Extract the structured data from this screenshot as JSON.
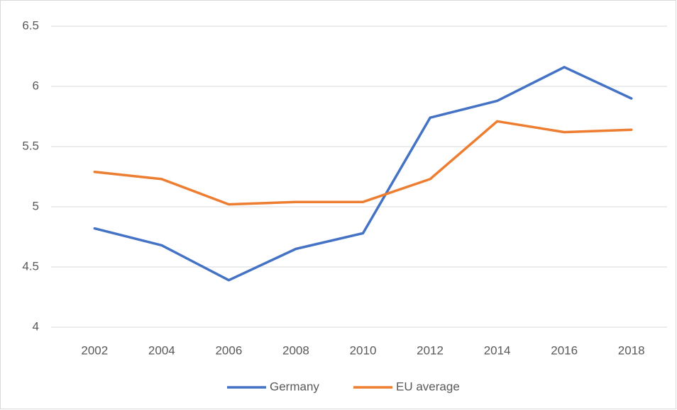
{
  "chart_data": {
    "type": "line",
    "categories": [
      "2002",
      "2004",
      "2006",
      "2008",
      "2010",
      "2012",
      "2014",
      "2016",
      "2018"
    ],
    "series": [
      {
        "name": "Germany",
        "color": "#4472c4",
        "values": [
          4.82,
          4.68,
          4.39,
          4.65,
          4.78,
          5.74,
          5.88,
          6.16,
          5.9
        ]
      },
      {
        "name": "EU average",
        "color": "#ed7d31",
        "values": [
          5.29,
          5.23,
          5.02,
          5.04,
          5.04,
          5.23,
          5.71,
          5.62,
          5.64
        ]
      }
    ],
    "ylim": [
      4,
      6.5
    ],
    "yticks": [
      4,
      4.5,
      5,
      5.5,
      6,
      6.5
    ],
    "grid": true,
    "legend": "bottom"
  }
}
